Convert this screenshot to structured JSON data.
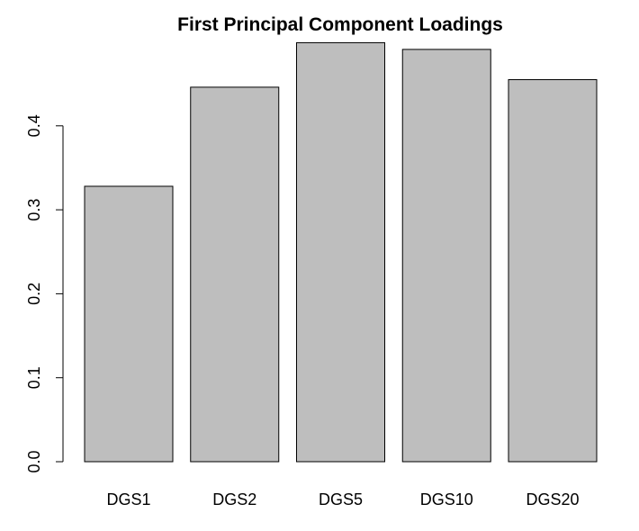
{
  "chart_data": {
    "type": "bar",
    "title": "First Principal Component Loadings",
    "xlabel": "",
    "ylabel": "",
    "categories": [
      "DGS1",
      "DGS2",
      "DGS5",
      "DGS10",
      "DGS20"
    ],
    "values": [
      0.328,
      0.446,
      0.499,
      0.491,
      0.455
    ],
    "ylim": [
      0,
      0.5
    ],
    "yticks": [
      0.0,
      0.1,
      0.2,
      0.3,
      0.4
    ],
    "ytick_labels": [
      "0.0",
      "0.1",
      "0.2",
      "0.3",
      "0.4"
    ],
    "bar_color": "#bebebe",
    "grid": false,
    "legend": "none"
  }
}
